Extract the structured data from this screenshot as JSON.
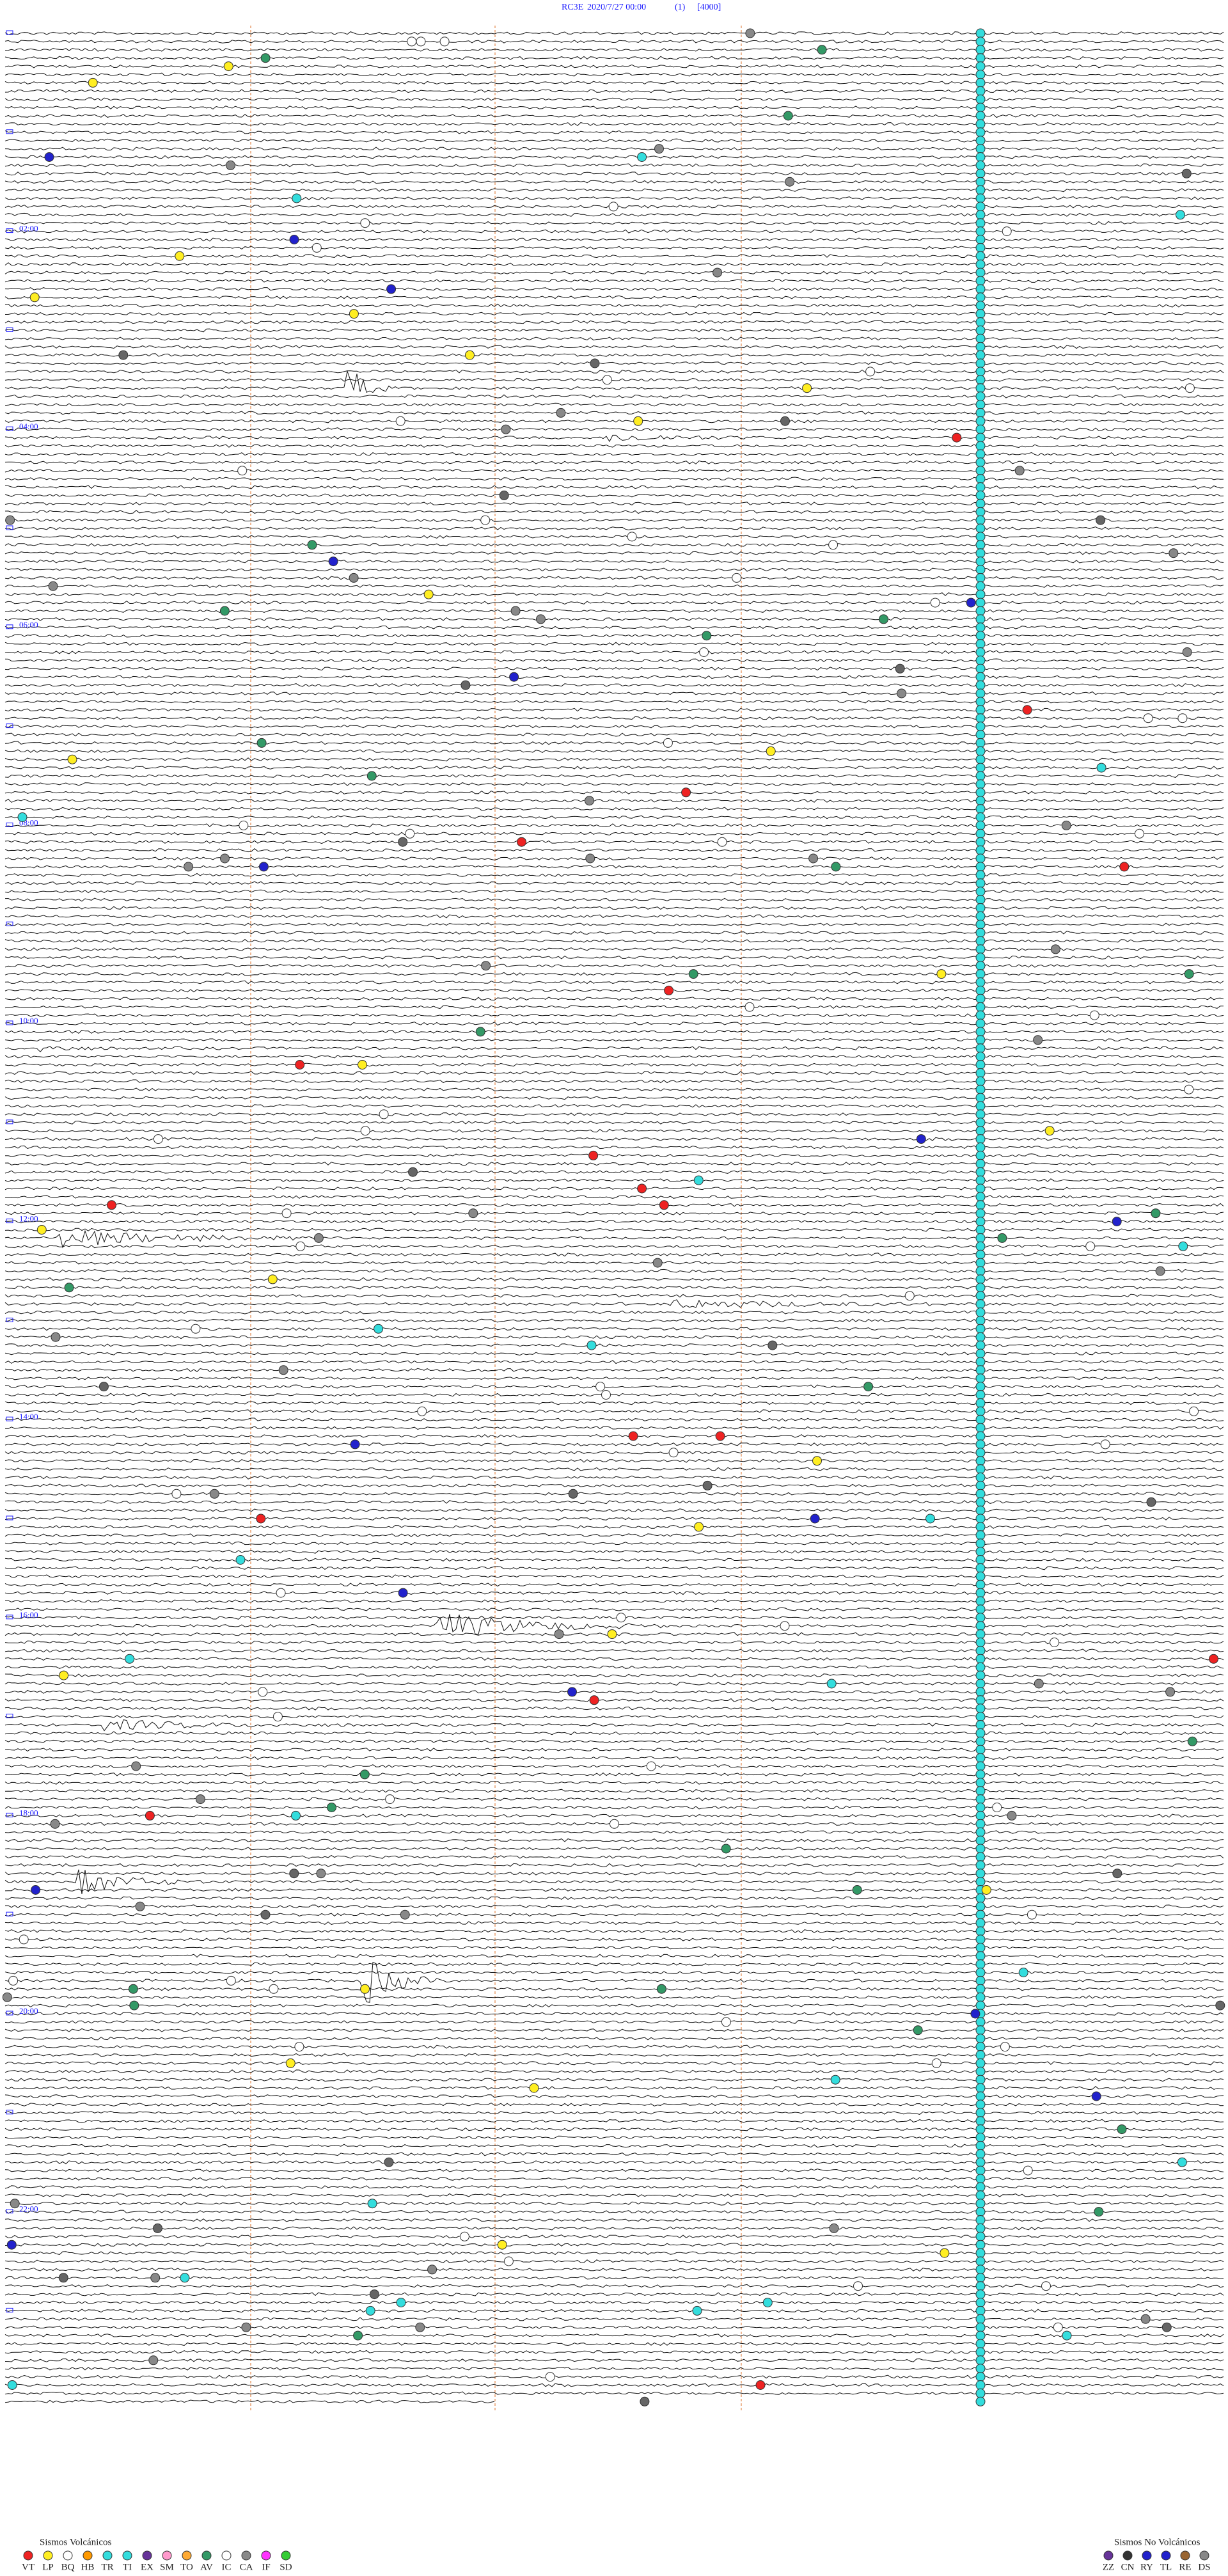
{
  "header": {
    "station": "RC3E",
    "datetime": "2020/7/27 00:00",
    "channel": "(1)",
    "scale": "[4000]"
  },
  "time_labels": [
    "02:00",
    "04:00",
    "06:00",
    "08:00",
    "10:00",
    "12:00",
    "14:00",
    "16:00",
    "18:00",
    "20:00",
    "22:00"
  ],
  "legend": {
    "volcanic": {
      "title": "Sismos Volcánicos",
      "items": [
        "VT",
        "LP",
        "BQ",
        "HB",
        "TR",
        "TI",
        "EX",
        "SM",
        "TO",
        "AV",
        "IC",
        "CA",
        "IF",
        "SD"
      ]
    },
    "non_volcanic": {
      "title": "Sismos No Volcánicos",
      "items": [
        "ZZ",
        "CN",
        "RY",
        "TL",
        "RE",
        "DS"
      ]
    }
  }
}
